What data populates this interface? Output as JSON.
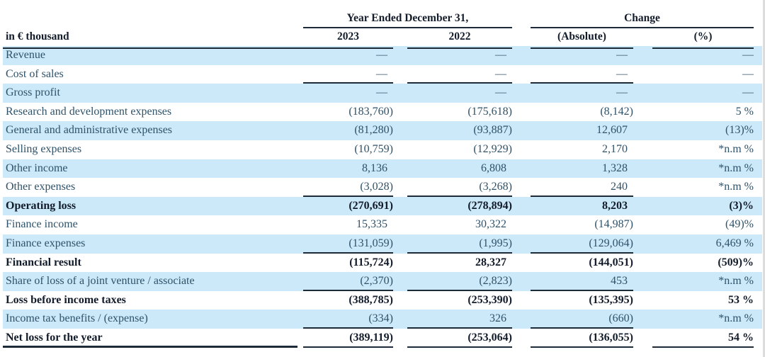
{
  "table": {
    "unit_label": "in € thousand",
    "group_headers": [
      {
        "label": "Year Ended December 31,"
      },
      {
        "label": "Change"
      }
    ],
    "column_headers": [
      "2023",
      "2022",
      "(Absolute)",
      "(%)"
    ],
    "colors": {
      "row_shade": "#cbe9f8",
      "text_regular": "#2f5269",
      "text_bold": "#131c2b",
      "rule": "#1d2a38"
    },
    "rows": [
      {
        "label": "Revenue",
        "values": [
          "—",
          "—",
          "—",
          "—"
        ],
        "shaded": true,
        "bold": false,
        "rule_below": false,
        "final": false
      },
      {
        "label": "Cost of sales",
        "values": [
          "—",
          "—",
          "—",
          "—"
        ],
        "shaded": false,
        "bold": false,
        "rule_below": true,
        "final": false
      },
      {
        "label": "Gross profit",
        "values": [
          "—",
          "—",
          "—",
          "—"
        ],
        "shaded": true,
        "bold": false,
        "rule_below": false,
        "final": false
      },
      {
        "label": "Research and development expenses",
        "values": [
          "(183,760)",
          "(175,618)",
          "(8,142)",
          "5 %"
        ],
        "shaded": false,
        "bold": false,
        "rule_below": false,
        "final": false
      },
      {
        "label": "General and administrative expenses",
        "values": [
          "(81,280)",
          "(93,887)",
          "12,607",
          "(13)%"
        ],
        "shaded": true,
        "bold": false,
        "rule_below": false,
        "final": false
      },
      {
        "label": "Selling expenses",
        "values": [
          "(10,759)",
          "(12,929)",
          "2,170",
          "*n.m %"
        ],
        "shaded": false,
        "bold": false,
        "rule_below": false,
        "final": false
      },
      {
        "label": "Other income",
        "values": [
          "8,136",
          "6,808",
          "1,328",
          "*n.m %"
        ],
        "shaded": true,
        "bold": false,
        "rule_below": false,
        "final": false
      },
      {
        "label": "Other expenses",
        "values": [
          "(3,028)",
          "(3,268)",
          "240",
          "*n.m %"
        ],
        "shaded": false,
        "bold": false,
        "rule_below": true,
        "final": false
      },
      {
        "label": "Operating loss",
        "values": [
          "(270,691)",
          "(278,894)",
          "8,203",
          "(3)%"
        ],
        "shaded": true,
        "bold": true,
        "rule_below": false,
        "final": false
      },
      {
        "label": "Finance income",
        "values": [
          "15,335",
          "30,322",
          "(14,987)",
          "(49)%"
        ],
        "shaded": false,
        "bold": false,
        "rule_below": false,
        "final": false
      },
      {
        "label": "Finance expenses",
        "values": [
          "(131,059)",
          "(1,995)",
          "(129,064)",
          "6,469 %"
        ],
        "shaded": true,
        "bold": false,
        "rule_below": true,
        "final": false
      },
      {
        "label": "Financial result",
        "values": [
          "(115,724)",
          "28,327",
          "(144,051)",
          "(509)%"
        ],
        "shaded": false,
        "bold": true,
        "rule_below": false,
        "final": false
      },
      {
        "label": "Share of loss of a joint venture / associate",
        "values": [
          "(2,370)",
          "(2,823)",
          "453",
          "*n.m %"
        ],
        "shaded": true,
        "bold": false,
        "rule_below": true,
        "final": false
      },
      {
        "label": "Loss before income taxes",
        "values": [
          "(388,785)",
          "(253,390)",
          "(135,395)",
          "53 %"
        ],
        "shaded": false,
        "bold": true,
        "rule_below": false,
        "final": false
      },
      {
        "label": "Income tax benefits / (expense)",
        "values": [
          "(334)",
          "326",
          "(660)",
          "*n.m %"
        ],
        "shaded": true,
        "bold": false,
        "rule_below": true,
        "final": false
      },
      {
        "label": "Net loss for the year",
        "values": [
          "(389,119)",
          "(253,064)",
          "(136,055)",
          "54 %"
        ],
        "shaded": false,
        "bold": true,
        "rule_below": false,
        "final": true
      }
    ]
  }
}
